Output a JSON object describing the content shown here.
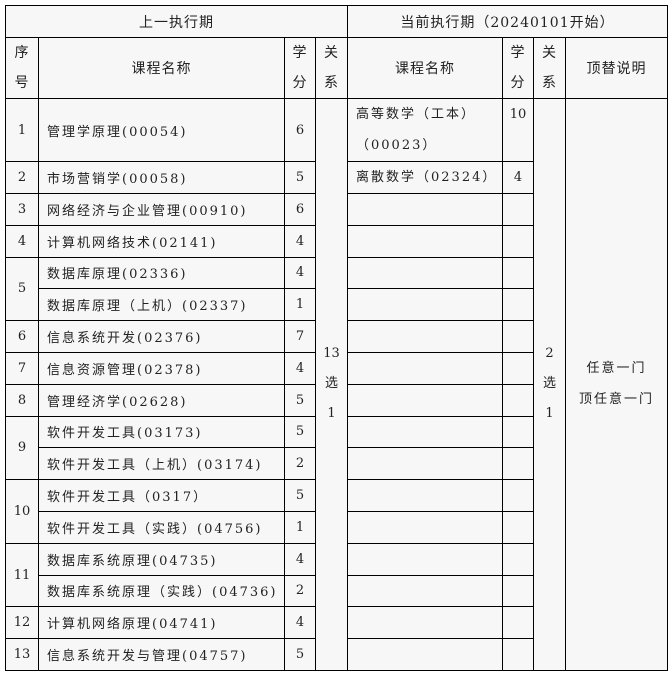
{
  "header": {
    "previous_period": "上一执行期",
    "current_period": "当前执行期（20240101开始）",
    "seq": [
      "序",
      "号"
    ],
    "course_name": "课程名称",
    "credit": [
      "学",
      "分"
    ],
    "relation": [
      "关",
      "系"
    ],
    "replacement_note": "顶替说明"
  },
  "previous_courses": [
    {
      "seq": "1",
      "courses": [
        {
          "name": "管理学原理(00054)",
          "credit": "6"
        }
      ]
    },
    {
      "seq": "2",
      "courses": [
        {
          "name": "市场营销学(00058)",
          "credit": "5"
        }
      ]
    },
    {
      "seq": "3",
      "courses": [
        {
          "name": "网络经济与企业管理(00910)",
          "credit": "6"
        }
      ]
    },
    {
      "seq": "4",
      "courses": [
        {
          "name": "计算机网络技术(02141)",
          "credit": "4"
        }
      ]
    },
    {
      "seq": "5",
      "courses": [
        {
          "name": "数据库原理(02336)",
          "credit": "4"
        },
        {
          "name": "数据库原理（上机）(02337)",
          "credit": "1"
        }
      ]
    },
    {
      "seq": "6",
      "courses": [
        {
          "name": "信息系统开发(02376)",
          "credit": "7"
        }
      ]
    },
    {
      "seq": "7",
      "courses": [
        {
          "name": "信息资源管理(02378)",
          "credit": "4"
        }
      ]
    },
    {
      "seq": "8",
      "courses": [
        {
          "name": "管理经济学(02628)",
          "credit": "5"
        }
      ]
    },
    {
      "seq": "9",
      "courses": [
        {
          "name": "软件开发工具(03173)",
          "credit": "5"
        },
        {
          "name": "软件开发工具（上机）(03174)",
          "credit": "2"
        }
      ]
    },
    {
      "seq": "10",
      "courses": [
        {
          "name": "软件开发工具（0317）",
          "credit": "5"
        },
        {
          "name": "软件开发工具（实践）(04756)",
          "credit": "1"
        }
      ]
    },
    {
      "seq": "11",
      "courses": [
        {
          "name": "数据库系统原理(04735)",
          "credit": "4"
        },
        {
          "name": "数据库系统原理（实践）(04736)",
          "credit": "2"
        }
      ]
    },
    {
      "seq": "12",
      "courses": [
        {
          "name": "计算机网络原理(04741)",
          "credit": "4"
        }
      ]
    },
    {
      "seq": "13",
      "courses": [
        {
          "name": "信息系统开发与管理(04757)",
          "credit": "5"
        }
      ]
    }
  ],
  "previous_relation": [
    "13",
    "选",
    "1"
  ],
  "current_courses": [
    {
      "name_lines": [
        "高等数学（工本）",
        "（00023）"
      ],
      "credit": "10"
    },
    {
      "name_lines": [
        "离散数学（02324）"
      ],
      "credit": "4"
    }
  ],
  "current_relation": [
    "2",
    "选",
    "1"
  ],
  "replacement": [
    "任意一门",
    "顶任意一门"
  ]
}
